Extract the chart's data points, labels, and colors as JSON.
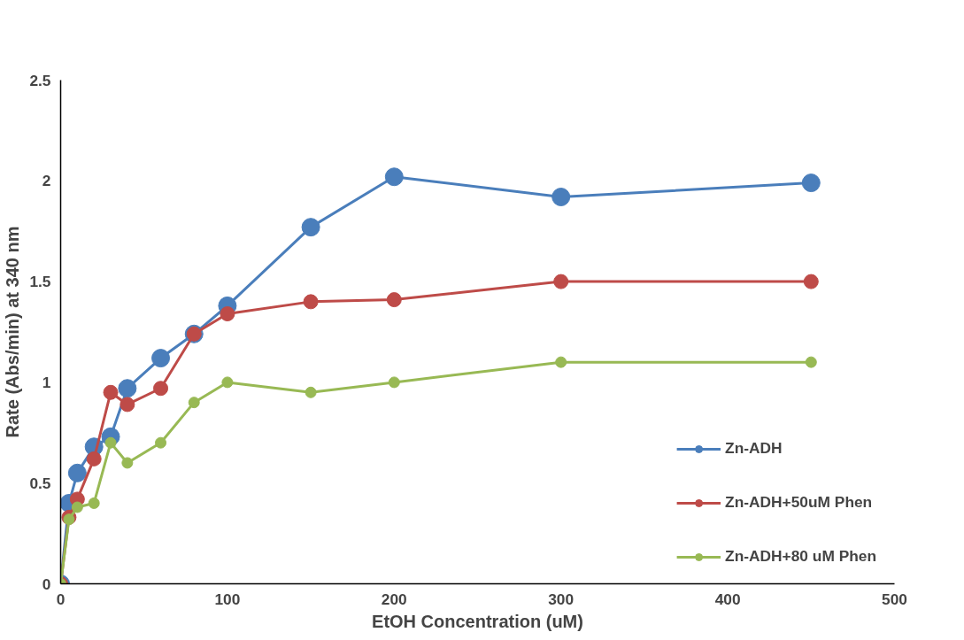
{
  "chart_data": {
    "type": "line",
    "xlabel": "EtOH Concentration (uM)",
    "ylabel": "Rate (Abs/min) at 340 nm",
    "x": [
      0,
      5,
      10,
      20,
      30,
      40,
      60,
      80,
      100,
      150,
      200,
      300,
      450
    ],
    "xlim": [
      0,
      500
    ],
    "xticks": [
      0,
      100,
      200,
      300,
      400,
      500
    ],
    "ylim": [
      0,
      2.5
    ],
    "yticks": [
      0,
      0.5,
      1,
      1.5,
      2,
      2.5
    ],
    "grid": false,
    "legend": "right",
    "marker": "circle",
    "line_style": "solid",
    "series": [
      {
        "name": "Zn-ADH",
        "color": "#4a7ebb",
        "values": [
          0,
          0.4,
          0.55,
          0.68,
          0.73,
          0.97,
          1.12,
          1.24,
          1.38,
          1.77,
          2.02,
          1.92,
          1.99
        ]
      },
      {
        "name": "Zn-ADH+50uM Phen",
        "color": "#be4b48",
        "values": [
          0,
          0.33,
          0.42,
          0.62,
          0.95,
          0.89,
          0.97,
          1.24,
          1.34,
          1.4,
          1.41,
          1.5,
          1.5
        ]
      },
      {
        "name": "Zn-ADH+80 uM Phen",
        "color": "#98b954",
        "values": [
          0,
          0.32,
          0.38,
          0.4,
          0.7,
          0.6,
          0.7,
          0.9,
          1.0,
          0.95,
          1.0,
          1.1,
          1.1
        ]
      }
    ]
  }
}
